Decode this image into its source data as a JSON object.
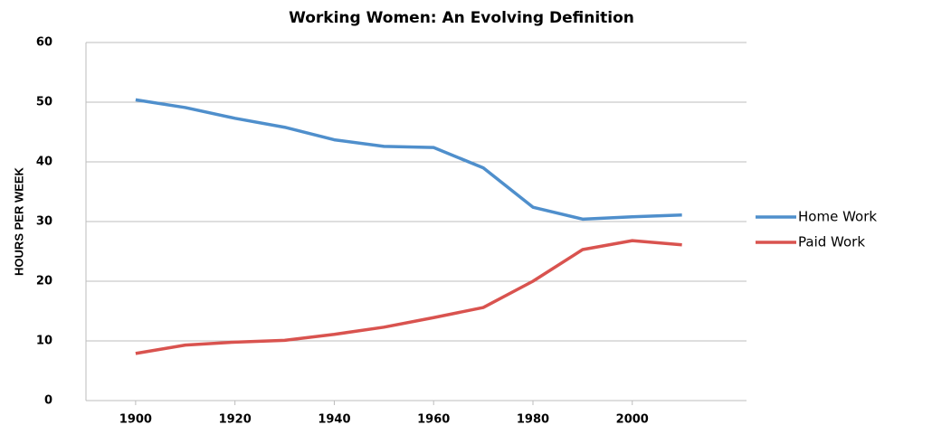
{
  "chart_data": {
    "type": "line",
    "title": "Working Women: An Evolving Definition",
    "y_label": "HOURS PER WEEK",
    "x": [
      1900,
      1910,
      1920,
      1930,
      1940,
      1950,
      1960,
      1970,
      1980,
      1990,
      2000,
      2010
    ],
    "series": [
      {
        "name": "Home Work",
        "color": "#4f8fcc",
        "values": [
          50.4,
          49.1,
          47.3,
          45.8,
          43.7,
          42.6,
          42.4,
          39,
          32.4,
          30.4,
          30.8,
          31.1
        ]
      },
      {
        "name": "Paid Work",
        "color": "#d9534f",
        "values": [
          7.9,
          9.3,
          9.8,
          10.1,
          11.1,
          12.3,
          13.9,
          15.6,
          20,
          25.3,
          26.8,
          26.1
        ]
      }
    ],
    "xlim": [
      1890,
      2023
    ],
    "xticks": [
      1900,
      1920,
      1940,
      1960,
      1980,
      2000
    ],
    "ylim": [
      0,
      60
    ],
    "yticks": [
      0,
      10,
      20,
      30,
      40,
      50,
      60
    ],
    "grid": true,
    "legend": "right"
  }
}
